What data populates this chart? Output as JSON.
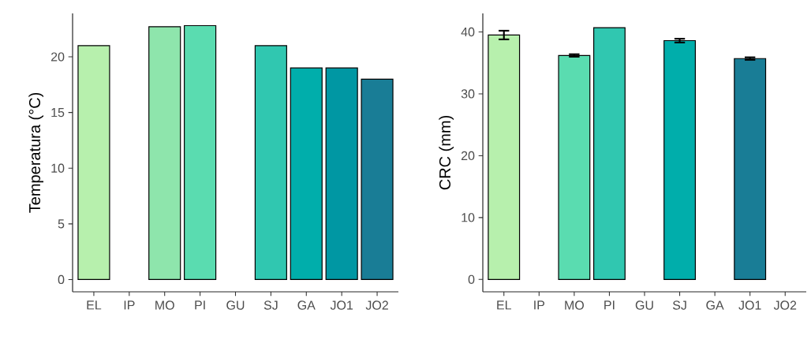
{
  "chart_data": [
    {
      "type": "bar",
      "ylabel": "Temperatura (°C)",
      "categories": [
        "EL",
        "IP",
        "MO",
        "PI",
        "GU",
        "SJ",
        "GA",
        "JO1",
        "JO2"
      ],
      "values": [
        21,
        null,
        22.7,
        22.8,
        null,
        21,
        19,
        19,
        18
      ],
      "colors": [
        "#b7f0ad",
        null,
        "#8ee5ac",
        "#5adcb0",
        null,
        "#30c7b0",
        "#00aeab",
        "#0097a3",
        "#197d96"
      ],
      "ylim": [
        -1.1,
        23.9
      ],
      "yticks": [
        0,
        5,
        10,
        15,
        20
      ]
    },
    {
      "type": "bar",
      "ylabel": "CRC (mm)",
      "categories": [
        "EL",
        "IP",
        "MO",
        "PI",
        "GU",
        "SJ",
        "GA",
        "JO1",
        "JO2"
      ],
      "values": [
        39.5,
        null,
        36.2,
        40.7,
        null,
        38.6,
        null,
        35.7,
        null
      ],
      "errors": [
        0.7,
        null,
        0.2,
        null,
        null,
        0.3,
        null,
        0.2,
        null
      ],
      "colors": [
        "#b7f0ad",
        null,
        "#5adcb0",
        "#30c7b0",
        null,
        "#00aeab",
        null,
        "#197d96",
        null
      ],
      "ylim": [
        -2,
        43
      ],
      "yticks": [
        0,
        10,
        20,
        30,
        40
      ]
    }
  ]
}
